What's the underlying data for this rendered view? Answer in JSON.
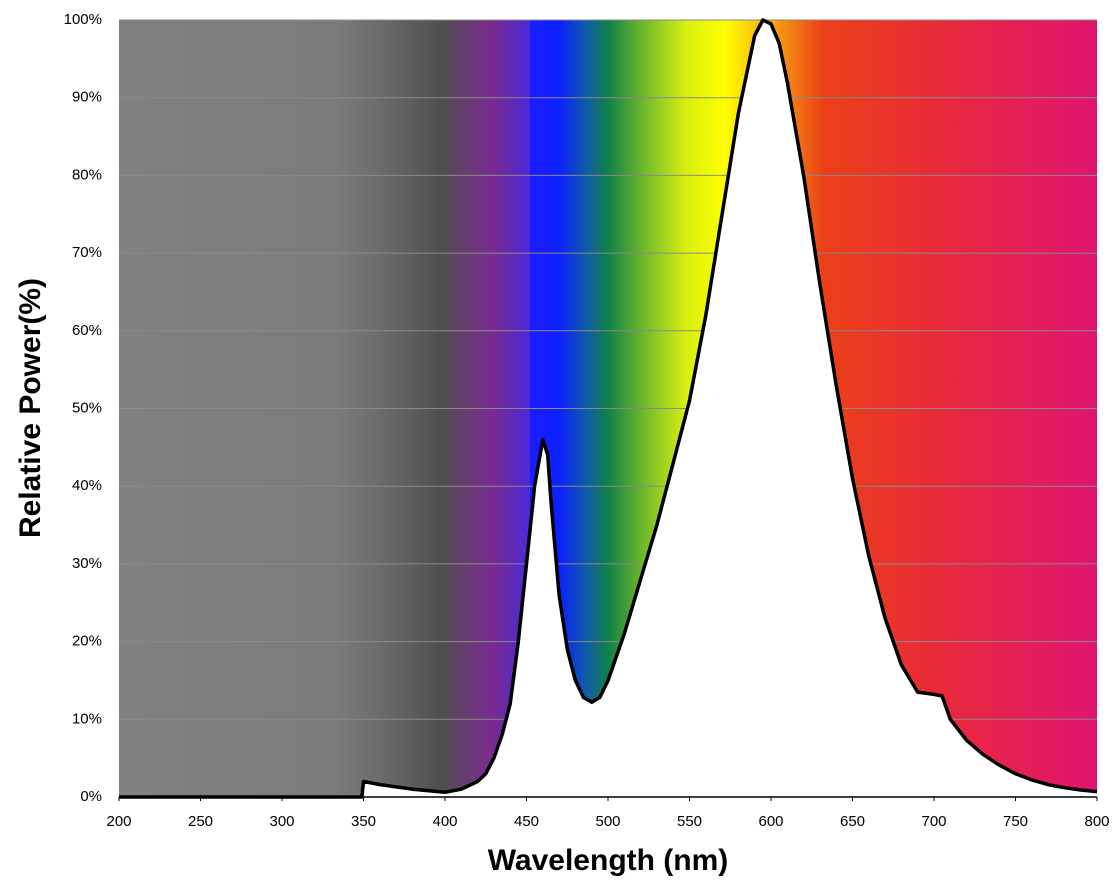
{
  "chart_data": {
    "type": "line",
    "xlabel": "Wavelength (nm)",
    "ylabel": "Relative Power(%)",
    "x": [
      200,
      349,
      350,
      355,
      360,
      370,
      380,
      390,
      400,
      410,
      420,
      425,
      430,
      435,
      440,
      445,
      450,
      455,
      460,
      463,
      465,
      470,
      475,
      480,
      485,
      490,
      495,
      500,
      510,
      520,
      530,
      540,
      550,
      560,
      570,
      580,
      590,
      595,
      600,
      605,
      610,
      620,
      630,
      640,
      650,
      660,
      670,
      680,
      690,
      700,
      705,
      710,
      720,
      730,
      740,
      750,
      760,
      770,
      780,
      790,
      800
    ],
    "series": [
      {
        "name": "Relative Power",
        "color": "#000000",
        "values": [
          0,
          0,
          2,
          1.8,
          1.6,
          1.3,
          1.0,
          0.8,
          0.6,
          1.0,
          2.0,
          3,
          5,
          8,
          12,
          20,
          30,
          40,
          46,
          44,
          38,
          26,
          19,
          15,
          12.8,
          12.2,
          12.8,
          15,
          21,
          28,
          35,
          43,
          51,
          62,
          75,
          88,
          98,
          100,
          99.5,
          97,
          92,
          80,
          66,
          53,
          41,
          31,
          23,
          17,
          13.5,
          13.2,
          13,
          10,
          7.3,
          5.5,
          4.1,
          3.0,
          2.2,
          1.6,
          1.2,
          0.9,
          0.7
        ]
      }
    ],
    "xlim": [
      200,
      800
    ],
    "xticks": [
      200,
      250,
      300,
      350,
      400,
      450,
      500,
      550,
      600,
      650,
      700,
      750,
      800
    ],
    "ylim": [
      0,
      100
    ],
    "yticks": [
      {
        "value": 0,
        "label": "0%"
      },
      {
        "value": 10,
        "label": "10%"
      },
      {
        "value": 20,
        "label": "20%"
      },
      {
        "value": 30,
        "label": "30%"
      },
      {
        "value": 40,
        "label": "40%"
      },
      {
        "value": 50,
        "label": "50%"
      },
      {
        "value": 60,
        "label": "60%"
      },
      {
        "value": 70,
        "label": "70%"
      },
      {
        "value": 80,
        "label": "80%"
      },
      {
        "value": 90,
        "label": "90%"
      },
      {
        "value": 100,
        "label": "100%"
      }
    ],
    "grid": true
  }
}
